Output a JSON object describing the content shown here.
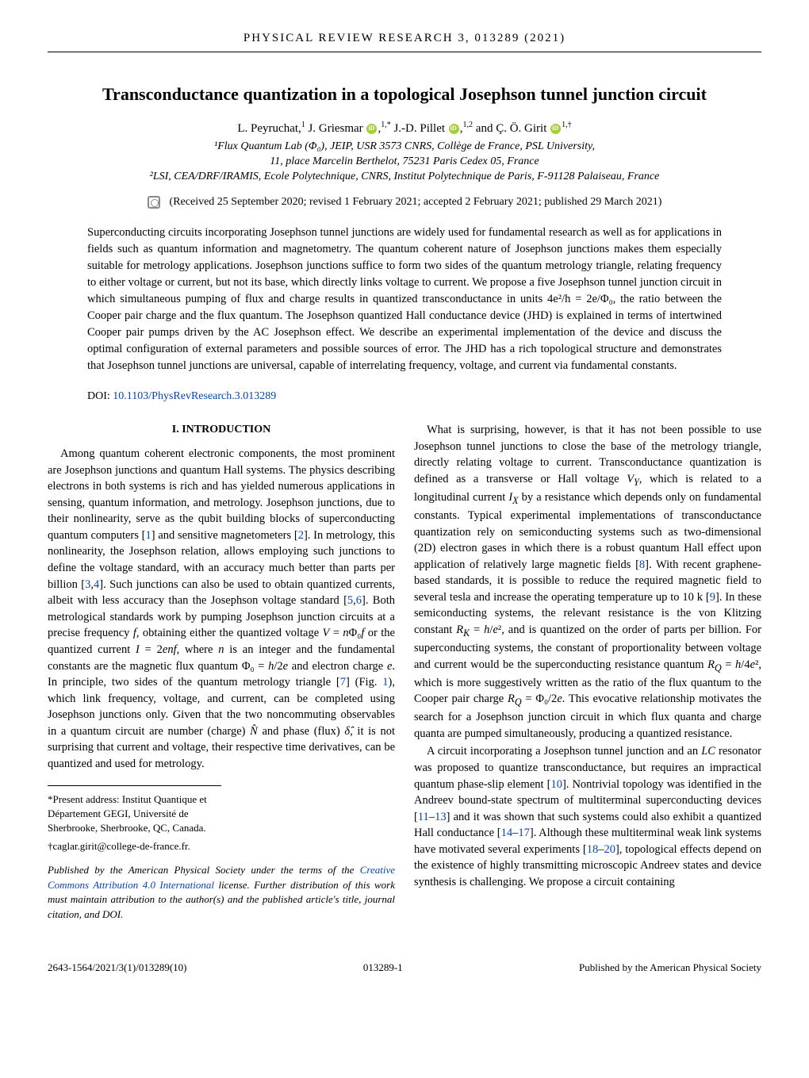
{
  "journal_header": "PHYSICAL REVIEW RESEARCH 3, 013289 (2021)",
  "title": "Transconductance quantization in a topological Josephson tunnel junction circuit",
  "authors_html": "L. Peyruchat,<sup>1</sup> J. Griesmar <span class='orcid' data-name='orcid-icon' data-interactable='false'></span>,<sup>1,*</sup> J.-D. Pillet <span class='orcid' data-name='orcid-icon' data-interactable='false'></span>,<sup>1,2</sup> and Ç. Ö. Girit <span class='orcid' data-name='orcid-icon' data-interactable='false'></span><sup>1,†</sup>",
  "affiliations": [
    "¹Flux Quantum Lab (Φ₀), JEIP, USR 3573 CNRS, Collège de France, PSL University,",
    "11, place Marcelin Berthelot, 75231 Paris Cedex 05, France",
    "²LSI, CEA/DRF/IRAMIS, Ecole Polytechnique, CNRS, Institut Polytechnique de Paris, F-91128 Palaiseau, France"
  ],
  "dates": "(Received 25 September 2020; revised 1 February 2021; accepted 2 February 2021; published 29 March 2021)",
  "abstract": "Superconducting circuits incorporating Josephson tunnel junctions are widely used for fundamental research as well as for applications in fields such as quantum information and magnetometry. The quantum coherent nature of Josephson junctions makes them especially suitable for metrology applications. Josephson junctions suffice to form two sides of the quantum metrology triangle, relating frequency to either voltage or current, but not its base, which directly links voltage to current. We propose a five Josephson tunnel junction circuit in which simultaneous pumping of flux and charge results in quantized transconductance in units 4e²/h = 2e/Φ₀, the ratio between the Cooper pair charge and the flux quantum. The Josephson quantized Hall conductance device (JHD) is explained in terms of intertwined Cooper pair pumps driven by the AC Josephson effect. We describe an experimental implementation of the device and discuss the optimal configuration of external parameters and possible sources of error. The JHD has a rich topological structure and demonstrates that Josephson tunnel junctions are universal, capable of interrelating frequency, voltage, and current via fundamental constants.",
  "doi_label": "DOI: ",
  "doi_link": "10.1103/PhysRevResearch.3.013289",
  "section_heading": "I. INTRODUCTION",
  "left_column_paragraphs": [
    "Among quantum coherent electronic components, the most prominent are Josephson junctions and quantum Hall systems. The physics describing electrons in both systems is rich and has yielded numerous applications in sensing, quantum information, and metrology. Josephson junctions, due to their nonlinearity, serve as the qubit building blocks of superconducting quantum computers [<span class='ref'>1</span>] and sensitive magnetometers [<span class='ref'>2</span>]. In metrology, this nonlinearity, the Josephson relation, allows employing such junctions to define the voltage standard, with an accuracy much better than parts per billion [<span class='ref'>3</span>,<span class='ref'>4</span>]. Such junctions can also be used to obtain quantized currents, albeit with less accuracy than the Josephson voltage standard [<span class='ref'>5</span>,<span class='ref'>6</span>]. Both metrological standards work by pumping Josephson junction circuits at a precise frequency <i>f</i>, obtaining either the quantized voltage <i>V</i> = <i>n</i>Φ₀<i>f</i> or the quantized current <i>I</i> = 2<i>enf</i>, where <i>n</i> is an integer and the fundamental constants are the magnetic flux quantum Φ₀ = <i>h</i>/2<i>e</i> and electron charge <i>e</i>. In principle, two sides of the quantum metrology triangle [<span class='ref'>7</span>] (Fig. <span class='ref'>1</span>), which link frequency, voltage, and current, can be completed using Josephson junctions only. Given that the two noncommuting observables in a quantum circuit are number (charge) <i>N̂</i> and phase (flux) <i>δ̂</i>, it is not surprising that current and voltage, their respective time derivatives, can be quantized and used for metrology."
  ],
  "right_column_paragraphs": [
    "What is surprising, however, is that it has not been possible to use Josephson tunnel junctions to close the base of the metrology triangle, directly relating voltage to current. Transconductance quantization is defined as a transverse or Hall voltage <i>V<sub>Y</sub></i>, which is related to a longitudinal current <i>I<sub>X</sub></i> by a resistance which depends only on fundamental constants. Typical experimental implementations of transconductance quantization rely on semiconducting systems such as two-dimensional (2D) electron gases in which there is a robust quantum Hall effect upon application of relatively large magnetic fields [<span class='ref'>8</span>]. With recent graphene-based standards, it is possible to reduce the required magnetic field to several tesla and increase the operating temperature up to 10 k [<span class='ref'>9</span>]. In these semiconducting systems, the relevant resistance is the von Klitzing constant <i>R<sub>K</sub></i> = <i>h</i>/<i>e</i>², and is quantized on the order of parts per billion. For superconducting systems, the constant of proportionality between voltage and current would be the superconducting resistance quantum <i>R<sub>Q</sub></i> = <i>h</i>/4<i>e</i>², which is more suggestively written as the ratio of the flux quantum to the Cooper pair charge <i>R<sub>Q</sub></i> = Φ₀/2<i>e</i>. This evocative relationship motivates the search for a Josephson junction circuit in which flux quanta and charge quanta are pumped simultaneously, producing a quantized resistance.",
    "A circuit incorporating a Josephson tunnel junction and an <i>LC</i> resonator was proposed to quantize transconductance, but requires an impractical quantum phase-slip element [<span class='ref'>10</span>]. Nontrivial topology was identified in the Andreev bound-state spectrum of multiterminal superconducting devices [<span class='ref'>11</span>–<span class='ref'>13</span>] and it was shown that such systems could also exhibit a quantized Hall conductance [<span class='ref'>14</span>–<span class='ref'>17</span>]. Although these multiterminal weak link systems have motivated several experiments [<span class='ref'>18</span>–<span class='ref'>20</span>], topological effects depend on the existence of highly transmitting microscopic Andreev states and device synthesis is challenging. We propose a circuit containing"
  ],
  "footnote1": "*Present address: Institut Quantique et Département GEGI, Université de Sherbrooke, Sherbrooke, QC, Canada.",
  "footnote2": "†caglar.girit@college-de-france.fr.",
  "pub_note_before": "Published by the American Physical Society under the terms of the ",
  "pub_note_link": "Creative Commons Attribution 4.0 International",
  "pub_note_after": " license. Further distribution of this work must maintain attribution to the author(s) and the published article's title, journal citation, and DOI.",
  "footer_left": "2643-1564/2021/3(1)/013289(10)",
  "footer_center": "013289-1",
  "footer_right": "Published by the American Physical Society"
}
